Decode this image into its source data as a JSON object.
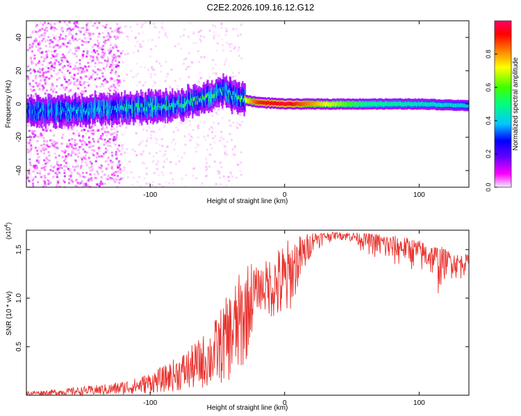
{
  "title": "C2E2.2026.109.16.12.G12",
  "colors": {
    "snr_line": "#e8312c",
    "axis": "#000000"
  },
  "chart_data": [
    {
      "type": "heatmap",
      "xlabel": "Height of straight line (km)",
      "ylabel": "Frequency (Hz)",
      "xlim": [
        -192,
        137
      ],
      "ylim": [
        -50,
        50
      ],
      "xticks": [
        -100,
        0,
        100
      ],
      "xtick_labels": [
        "-100",
        "0",
        "100"
      ],
      "yticks": [
        -40,
        -20,
        0,
        20,
        40
      ],
      "ytick_labels": [
        "-40",
        "-20",
        "0",
        "20",
        "40"
      ],
      "colorbar": {
        "label": "Normalized spectral amplitude",
        "range": [
          0,
          1
        ],
        "ticks": [
          0,
          0.2,
          0.4,
          0.6,
          0.8
        ],
        "tick_labels": [
          "0.0",
          "0.2",
          "0.4",
          "0.6",
          "0.8"
        ],
        "colormap": [
          "#f0f0ff",
          "#ff00ff",
          "#6600ff",
          "#0000ff",
          "#00c8ff",
          "#00ff80",
          "#40ff00",
          "#ffff00",
          "#ff8000",
          "#ff0000",
          "#ff0066"
        ]
      },
      "ridge": {
        "description": "spectral energy concentrated near 0 Hz, noisy band drifting upward from -5 Hz at -190 km to about +10 Hz near -45 km, then a steady tone at 0 Hz from -30 km to 137 km",
        "x": [
          -192,
          -150,
          -120,
          -100,
          -80,
          -60,
          -45,
          -35,
          -20,
          0,
          20,
          60,
          100,
          137
        ],
        "freq_hz": [
          -4,
          -4,
          -3,
          -2,
          0,
          3,
          8,
          3,
          1,
          0,
          0,
          0,
          0,
          -1
        ],
        "amplitude": [
          0.35,
          0.4,
          0.45,
          0.5,
          0.5,
          0.55,
          0.45,
          0.6,
          0.9,
          0.95,
          0.8,
          0.5,
          0.45,
          0.4
        ]
      }
    },
    {
      "type": "line",
      "xlabel": "Height of straight line (km)",
      "ylabel": "SNR (10 * v/v)",
      "y_multiplier": "(x10",
      "y_multiplier_exp": "4",
      "y_multiplier_close": ")",
      "xlim": [
        -192,
        137
      ],
      "ylim": [
        0,
        17000
      ],
      "xticks": [
        -100,
        0,
        100
      ],
      "xtick_labels": [
        "-100",
        "0",
        "100"
      ],
      "yticks": [
        5000,
        10000,
        15000
      ],
      "ytick_labels": [
        "0.5",
        "1.0",
        "1.5"
      ],
      "series": [
        {
          "name": "SNR",
          "color": "#e8312c",
          "envelope_x": [
            -192,
            -170,
            -150,
            -130,
            -110,
            -90,
            -70,
            -55,
            -40,
            -30,
            -25,
            -20,
            -10,
            0,
            10,
            20,
            30,
            40,
            50,
            60,
            70,
            80,
            90,
            100,
            110,
            115,
            120,
            130,
            137
          ],
          "envelope_upper": [
            400,
            600,
            900,
            1200,
            1800,
            3000,
            5000,
            7000,
            11000,
            13500,
            14000,
            13000,
            14500,
            16000,
            16500,
            16800,
            16800,
            16800,
            16800,
            16700,
            16700,
            16500,
            16300,
            16000,
            15500,
            15500,
            15000,
            14500,
            14500
          ],
          "envelope_lower": [
            0,
            0,
            0,
            0,
            100,
            300,
            500,
            800,
            1500,
            2500,
            6000,
            9000,
            8000,
            7000,
            11000,
            14500,
            15500,
            16000,
            15500,
            14500,
            13500,
            12500,
            13000,
            12000,
            11500,
            9500,
            12000,
            11500,
            12500
          ]
        }
      ]
    }
  ]
}
